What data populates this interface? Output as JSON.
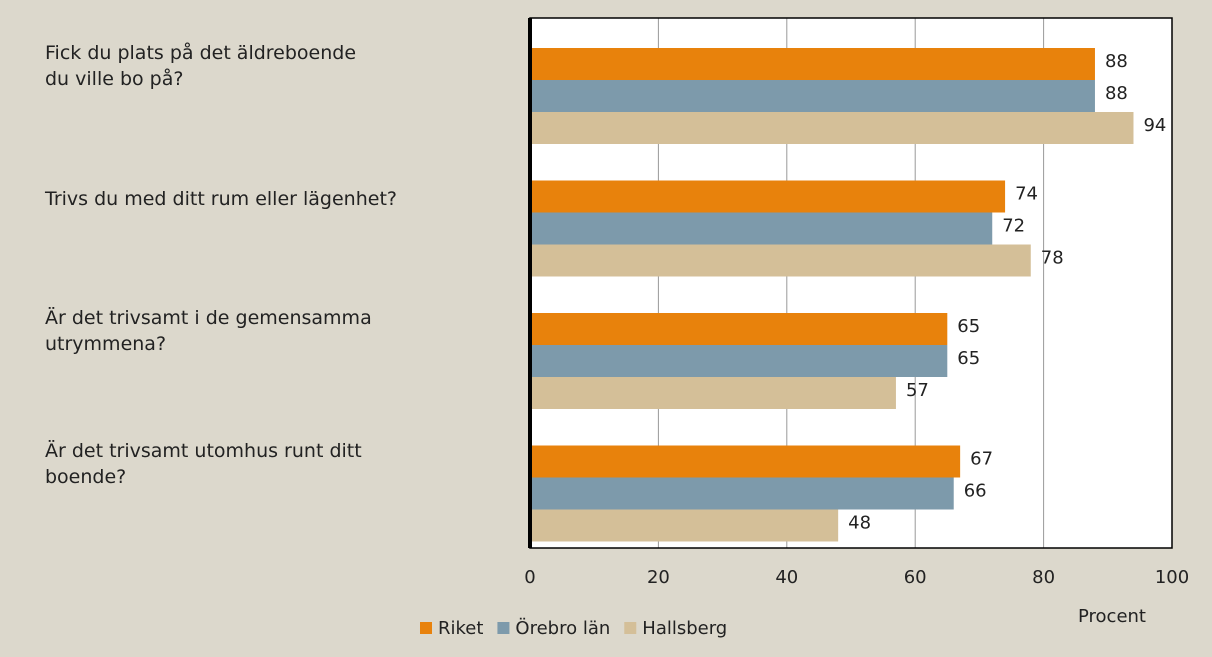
{
  "chart_data": {
    "type": "bar",
    "orientation": "horizontal",
    "categories": [
      "Fick du plats på det äldreboende\ndu ville bo på?",
      "Trivs du med ditt rum eller lägenhet?",
      "Är det trivsamt i de gemensamma\nutrymmena?",
      "Är det trivsamt utomhus runt ditt\nboende?"
    ],
    "series": [
      {
        "name": "Riket",
        "color": "#e8820c",
        "values": [
          88,
          74,
          65,
          67
        ]
      },
      {
        "name": "Örebro län",
        "color": "#7d9aab",
        "values": [
          88,
          72,
          65,
          66
        ]
      },
      {
        "name": "Hallsberg",
        "color": "#d4bf98",
        "values": [
          94,
          78,
          57,
          48
        ]
      }
    ],
    "xlabel": "Procent",
    "xlim": [
      0,
      100
    ],
    "xticks": [
      0,
      20,
      40,
      60,
      80,
      100
    ],
    "grid": true,
    "legend": "bottom"
  }
}
